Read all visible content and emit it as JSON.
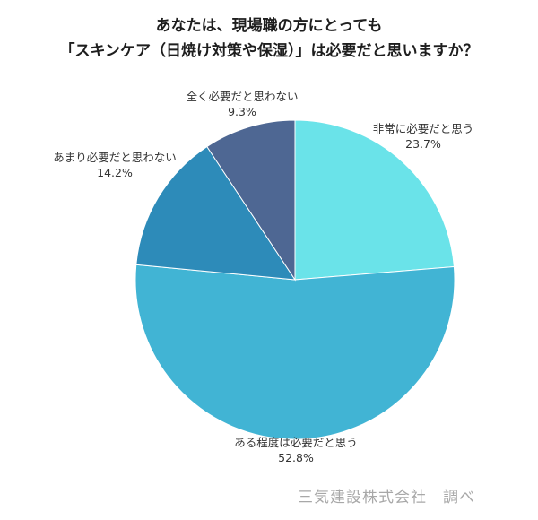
{
  "chart_data": {
    "type": "pie",
    "title_lines": [
      "あなたは、現場職の方にとっても",
      "「スキンケア（日焼け対策や保湿）」は必要だと思いますか？"
    ],
    "slices": [
      {
        "label": "非常に必要だと思う",
        "value": 23.7,
        "value_label": "23.7%",
        "color": "#6ae3e9"
      },
      {
        "label": "ある程度は必要だと思う",
        "value": 52.8,
        "value_label": "52.8%",
        "color": "#41b4d4"
      },
      {
        "label": "あまり必要だと思わない",
        "value": 14.2,
        "value_label": "14.2%",
        "color": "#2d8bb9"
      },
      {
        "label": "全く必要だと思わない",
        "value": 9.3,
        "value_label": "9.3%",
        "color": "#4e6793"
      }
    ]
  },
  "credit": "三気建設株式会社　調べ"
}
